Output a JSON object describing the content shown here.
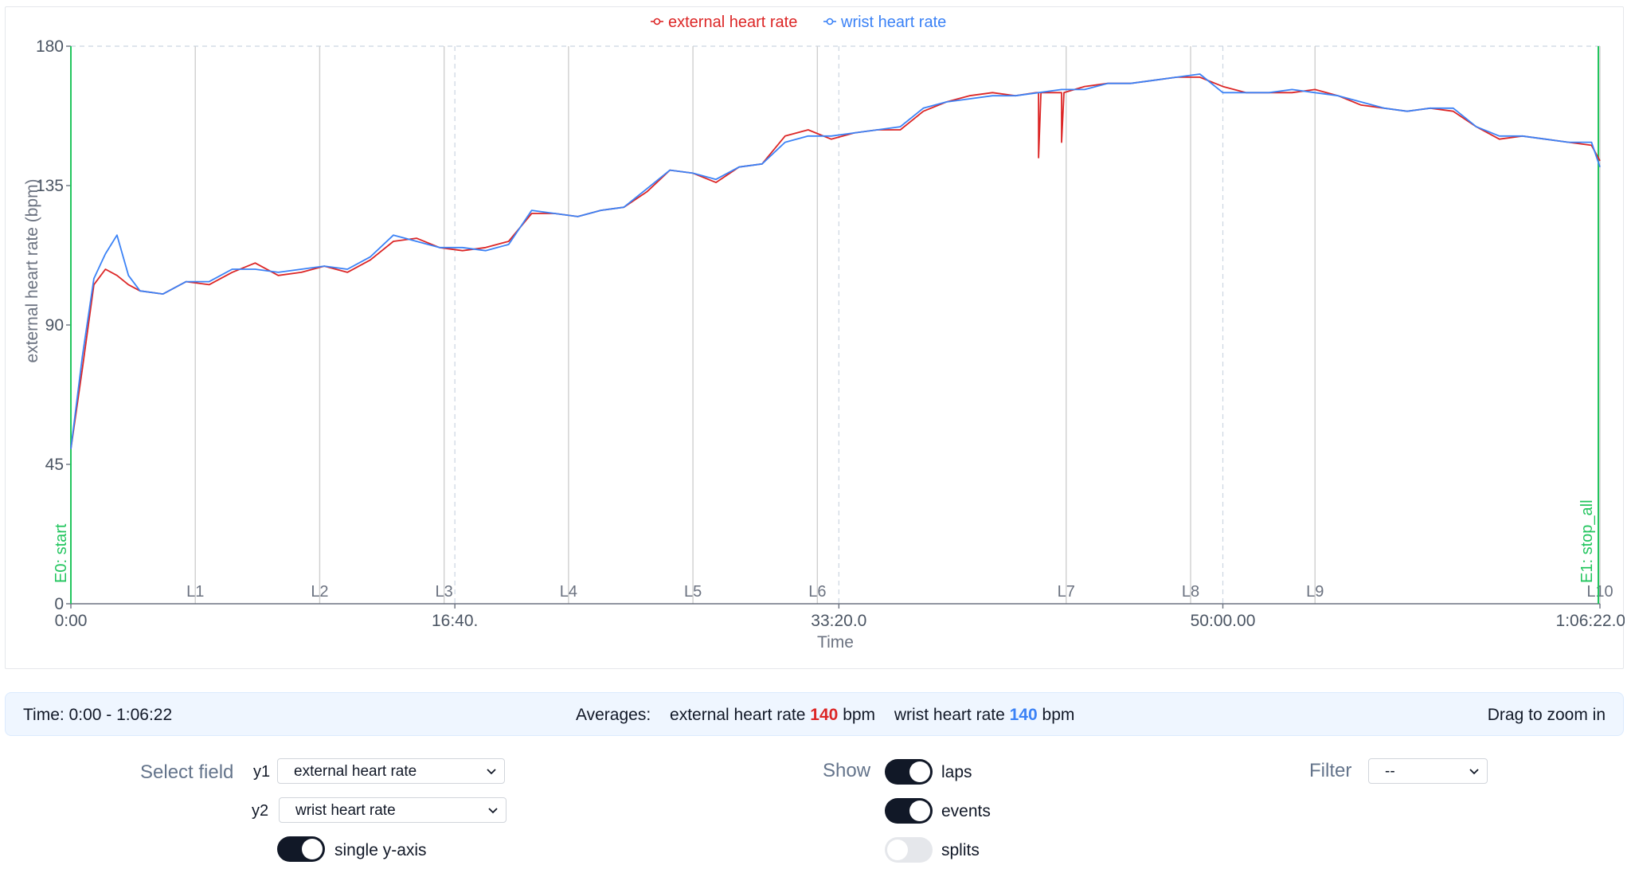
{
  "legend": [
    {
      "label": "external heart rate",
      "color": "#dc2626"
    },
    {
      "label": "wrist heart rate",
      "color": "#3b82f6"
    }
  ],
  "chart_data": {
    "type": "line",
    "xlabel": "Time",
    "ylabel": "external heart rate (bpm)",
    "ylim": [
      0,
      180
    ],
    "xlim_seconds": [
      0,
      3982
    ],
    "yticks": [
      "180",
      "135",
      "90",
      "45",
      "0"
    ],
    "xticks": [
      "0:00",
      "16:40.",
      "33:20.0",
      "50:00.00",
      "1:06:22.000"
    ],
    "grid": "dashed top border and dashed vertical lines at x ticks",
    "x_seconds": [
      0,
      30,
      60,
      90,
      120,
      150,
      180,
      240,
      300,
      360,
      420,
      480,
      540,
      600,
      660,
      720,
      780,
      840,
      900,
      960,
      1020,
      1080,
      1140,
      1200,
      1260,
      1320,
      1380,
      1440,
      1500,
      1560,
      1620,
      1680,
      1740,
      1800,
      1860,
      1920,
      1980,
      2040,
      2100,
      2160,
      2220,
      2280,
      2340,
      2400,
      2460,
      2520,
      2580,
      2640,
      2700,
      2760,
      2820,
      2880,
      2940,
      3000,
      3060,
      3120,
      3180,
      3240,
      3300,
      3360,
      3420,
      3480,
      3540,
      3600,
      3660,
      3720,
      3780,
      3840,
      3900,
      3960,
      3982
    ],
    "series": [
      {
        "name": "external heart rate",
        "color": "#dc2626",
        "values": [
          50,
          76,
          103,
          108,
          106,
          103,
          101,
          100,
          104,
          103,
          107,
          110,
          106,
          107,
          109,
          107,
          111,
          117,
          118,
          115,
          114,
          115,
          117,
          126,
          126,
          125,
          127,
          128,
          133,
          140,
          139,
          136,
          141,
          142,
          151,
          153,
          150,
          152,
          153,
          153,
          159,
          162,
          164,
          165,
          164,
          165,
          165,
          167,
          168,
          168,
          169,
          170,
          170,
          167,
          165,
          165,
          165,
          166,
          164,
          161,
          160,
          159,
          160,
          159,
          154,
          150,
          151,
          150,
          149,
          148,
          143
        ]
      },
      {
        "name": "wrist heart rate",
        "color": "#3b82f6",
        "values": [
          50,
          80,
          105,
          113,
          119,
          106,
          101,
          100,
          104,
          104,
          108,
          108,
          107,
          108,
          109,
          108,
          112,
          119,
          117,
          115,
          115,
          114,
          116,
          127,
          126,
          125,
          127,
          128,
          134,
          140,
          139,
          137,
          141,
          142,
          149,
          151,
          151,
          152,
          153,
          154,
          160,
          162,
          163,
          164,
          164,
          165,
          166,
          166,
          168,
          168,
          169,
          170,
          171,
          165,
          165,
          165,
          166,
          165,
          164,
          162,
          160,
          159,
          160,
          160,
          154,
          151,
          151,
          150,
          149,
          149,
          141
        ]
      }
    ],
    "anomalies_external": [
      {
        "x_seconds": 2520,
        "value": 144
      },
      {
        "x_seconds": 2580,
        "value": 149
      }
    ],
    "laps": [
      {
        "label": "L1",
        "x_seconds": 324
      },
      {
        "label": "L2",
        "x_seconds": 648
      },
      {
        "label": "L3",
        "x_seconds": 972
      },
      {
        "label": "L4",
        "x_seconds": 1296
      },
      {
        "label": "L5",
        "x_seconds": 1620
      },
      {
        "label": "L6",
        "x_seconds": 1944
      },
      {
        "label": "L7",
        "x_seconds": 2592
      },
      {
        "label": "L8",
        "x_seconds": 2916
      },
      {
        "label": "L9",
        "x_seconds": 3240
      },
      {
        "label": "L10",
        "x_seconds": 3982
      }
    ],
    "events": [
      {
        "label": "E0: start",
        "x_seconds": 0
      },
      {
        "label": "E1: stop_all",
        "x_seconds": 3982
      }
    ],
    "event_color": "#22c55e"
  },
  "info": {
    "time_range": "Time: 0:00 - 1:06:22",
    "averages_label": "Averages:",
    "avg1_label": "external heart rate",
    "avg1_value": "140",
    "avg2_label": "wrist heart rate",
    "avg2_value": "140",
    "unit": "bpm",
    "hint": "Drag to zoom in"
  },
  "controls": {
    "select_field_label": "Select field",
    "y1_label": "y1",
    "y1_value": "external heart rate",
    "y2_label": "y2",
    "y2_value": "wrist heart rate",
    "single_axis_label": "single y-axis",
    "single_axis_on": true,
    "show_label": "Show",
    "laps_label": "laps",
    "laps_on": true,
    "events_label": "events",
    "events_on": true,
    "splits_label": "splits",
    "splits_on": false,
    "filter_label": "Filter",
    "filter_value": "--"
  }
}
